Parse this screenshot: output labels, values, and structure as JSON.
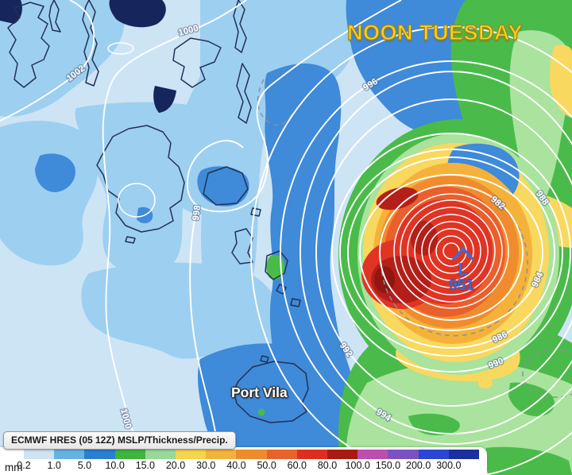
{
  "map": {
    "time_label": "NOON TUESDAY",
    "low_marker": {
      "symbol": "L",
      "pressure": "951"
    },
    "city_label": "Port Vila",
    "isobar_labels": [
      "982",
      "984",
      "986",
      "988",
      "990",
      "992",
      "994",
      "996",
      "998",
      "1000",
      "1000",
      "1002"
    ],
    "colors": {
      "bg": "#cde4f5",
      "precip_medium_blue": "#9dcff0",
      "precip_deep_blue": "#3f8ad9",
      "land_navy": "#17255d",
      "precip_green": "#4abb4a",
      "precip_light_green": "#a9e39d",
      "precip_yellow": "#f8d85e",
      "precip_amber": "#f5b23a",
      "precip_orange": "#f08c2e",
      "precip_red_orange": "#ea5f2b",
      "precip_red": "#e03425",
      "precip_dark_red": "#b3201a",
      "precip_darkest_red": "#931510",
      "time_label_yellow": "#f6d51f",
      "low_marker_blue": "#3a6ed3"
    }
  },
  "legend": {
    "title": "ECMWF HRES (05 12Z) MSLP/Thickness/Precip.",
    "unit": "mm",
    "ticks": [
      "0.2",
      "1.0",
      "5.0",
      "10.0",
      "15.0",
      "20.0",
      "30.0",
      "40.0",
      "50.0",
      "60.0",
      "80.0",
      "100.0",
      "150.0",
      "200.0",
      "300.0"
    ],
    "colors": [
      "#cfe3f3",
      "#66b3e3",
      "#2a7fd0",
      "#3eb53e",
      "#98d998",
      "#f6d44c",
      "#f2b33c",
      "#ec8c2c",
      "#e8632c",
      "#dc2f22",
      "#a81b13",
      "#bb4fb0",
      "#7a52c0",
      "#2a46d4",
      "#1c2f9e"
    ]
  }
}
